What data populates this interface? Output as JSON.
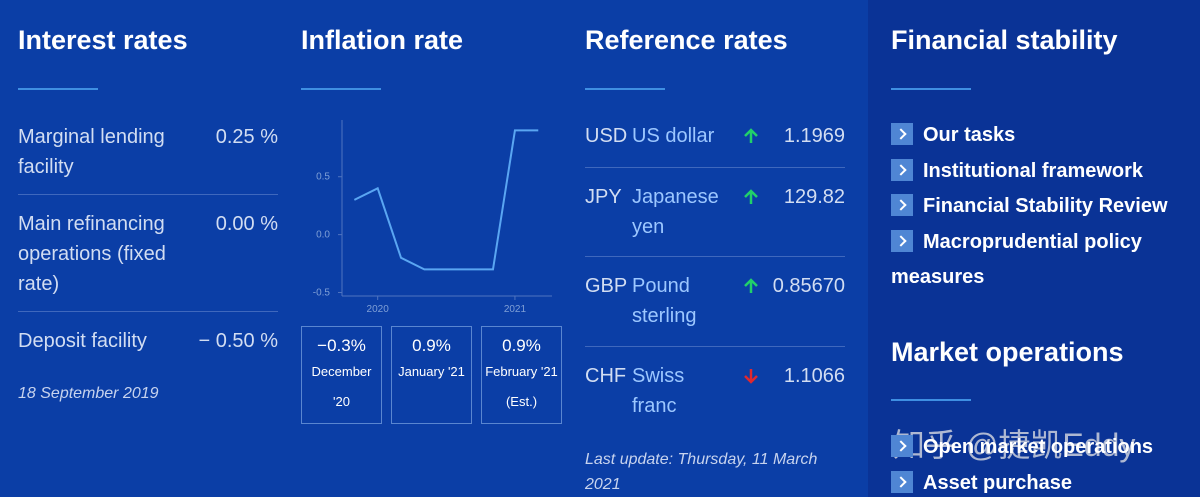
{
  "interest_rates": {
    "title": "Interest rates",
    "rows": [
      {
        "label": "Marginal lending facility",
        "value": "0.25 %"
      },
      {
        "label": "Main refinancing operations (fixed rate)",
        "value": "0.00 %"
      },
      {
        "label": "Deposit facility",
        "value": "− 0.50 %"
      }
    ],
    "note": "18 September 2019"
  },
  "inflation_rate": {
    "title": "Inflation rate",
    "chart_data": {
      "type": "line",
      "x": [
        2019.83,
        2020.0,
        2020.17,
        2020.34,
        2020.5,
        2020.67,
        2020.84,
        2021.0,
        2021.17
      ],
      "series": [
        {
          "color": "#5aa6f2",
          "values": [
            0.3,
            0.4,
            -0.2,
            -0.3,
            -0.3,
            -0.3,
            -0.3,
            0.9,
            0.9
          ]
        }
      ],
      "xlim": [
        2019.74,
        2021.27
      ],
      "xticks": [
        2020,
        2021
      ],
      "ylim": [
        -0.53,
        0.99
      ],
      "yticks": [
        0.5,
        {
          "value": 0,
          "label": "0.0"
        },
        -0.5
      ]
    },
    "boxes": [
      {
        "value": "−0.3%",
        "label": "December '20"
      },
      {
        "value": "0.9%",
        "label": "January '21"
      },
      {
        "value": "0.9%",
        "label": "February '21 (Est.)"
      }
    ]
  },
  "reference_rates": {
    "title": "Reference rates",
    "rows": [
      {
        "code": "USD",
        "name": "US dollar",
        "trend": "up",
        "value": "1.1969"
      },
      {
        "code": "JPY",
        "name": "Japanese yen",
        "trend": "up",
        "value": "129.82"
      },
      {
        "code": "GBP",
        "name": "Pound sterling",
        "trend": "up",
        "value": "0.85670"
      },
      {
        "code": "CHF",
        "name": "Swiss franc",
        "trend": "down",
        "value": "1.1066"
      }
    ],
    "note": "Last update: Thursday, 11 March 2021"
  },
  "financial_stability": {
    "title": "Financial stability",
    "links": [
      "Our tasks",
      "Institutional framework",
      "Financial Stability Review",
      "Macroprudential policy measures"
    ]
  },
  "market_operations": {
    "title": "Market operations",
    "links": [
      "Open market operations",
      "Asset purchase"
    ]
  },
  "watermark": "知乎 @捷凯Eddy"
}
